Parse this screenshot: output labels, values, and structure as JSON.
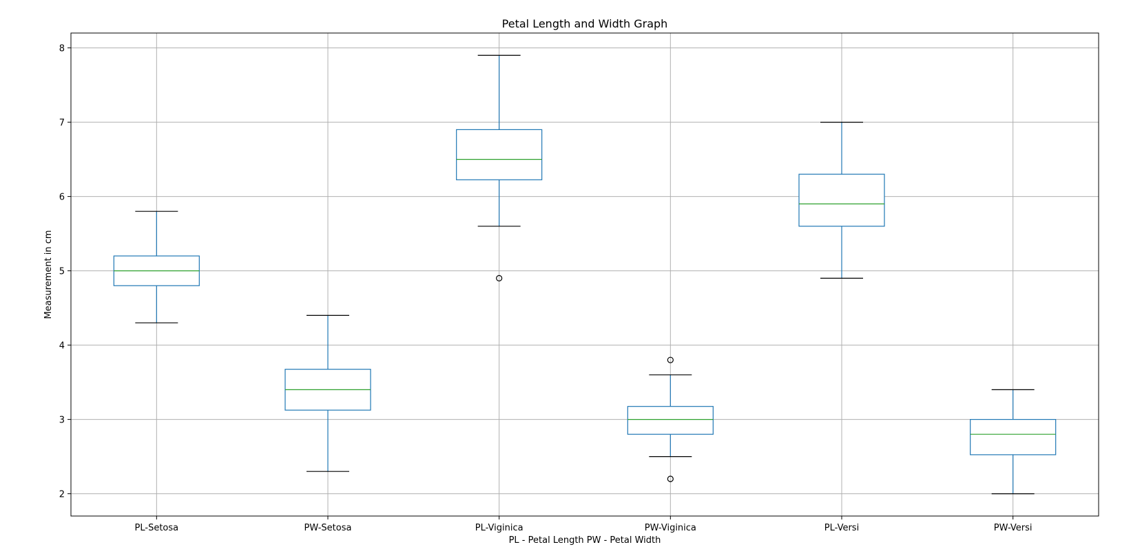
{
  "chart_data": {
    "type": "box",
    "title": "Petal Length and Width Graph",
    "xlabel": "PL - Petal Length   PW - Petal Width",
    "ylabel": "Measurement in cm",
    "ylim": [
      1.7,
      8.2
    ],
    "yticks": [
      2,
      3,
      4,
      5,
      6,
      7,
      8
    ],
    "grid": true,
    "colors": {
      "box": "#1f77b4",
      "median": "#2ca02c",
      "whisker_cap": "#000000",
      "grid": "#b0b0b0"
    },
    "boxes": [
      {
        "label": "PL-Setosa",
        "whislo": 4.3,
        "q1": 4.8,
        "med": 5.0,
        "q3": 5.2,
        "whishi": 5.8,
        "fliers": []
      },
      {
        "label": "PW-Setosa",
        "whislo": 2.3,
        "q1": 3.125,
        "med": 3.4,
        "q3": 3.675,
        "whishi": 4.4,
        "fliers": []
      },
      {
        "label": "PL-Viginica",
        "whislo": 5.6,
        "q1": 6.225,
        "med": 6.5,
        "q3": 6.9,
        "whishi": 7.9,
        "fliers": [
          4.9
        ]
      },
      {
        "label": "PW-Viginica",
        "whislo": 2.5,
        "q1": 2.8,
        "med": 3.0,
        "q3": 3.175,
        "whishi": 3.6,
        "fliers": [
          3.8,
          2.2
        ]
      },
      {
        "label": "PL-Versi",
        "whislo": 4.9,
        "q1": 5.6,
        "med": 5.9,
        "q3": 6.3,
        "whishi": 7.0,
        "fliers": []
      },
      {
        "label": "PW-Versi",
        "whislo": 2.0,
        "q1": 2.525,
        "med": 2.8,
        "q3": 3.0,
        "whishi": 3.4,
        "fliers": []
      }
    ]
  }
}
